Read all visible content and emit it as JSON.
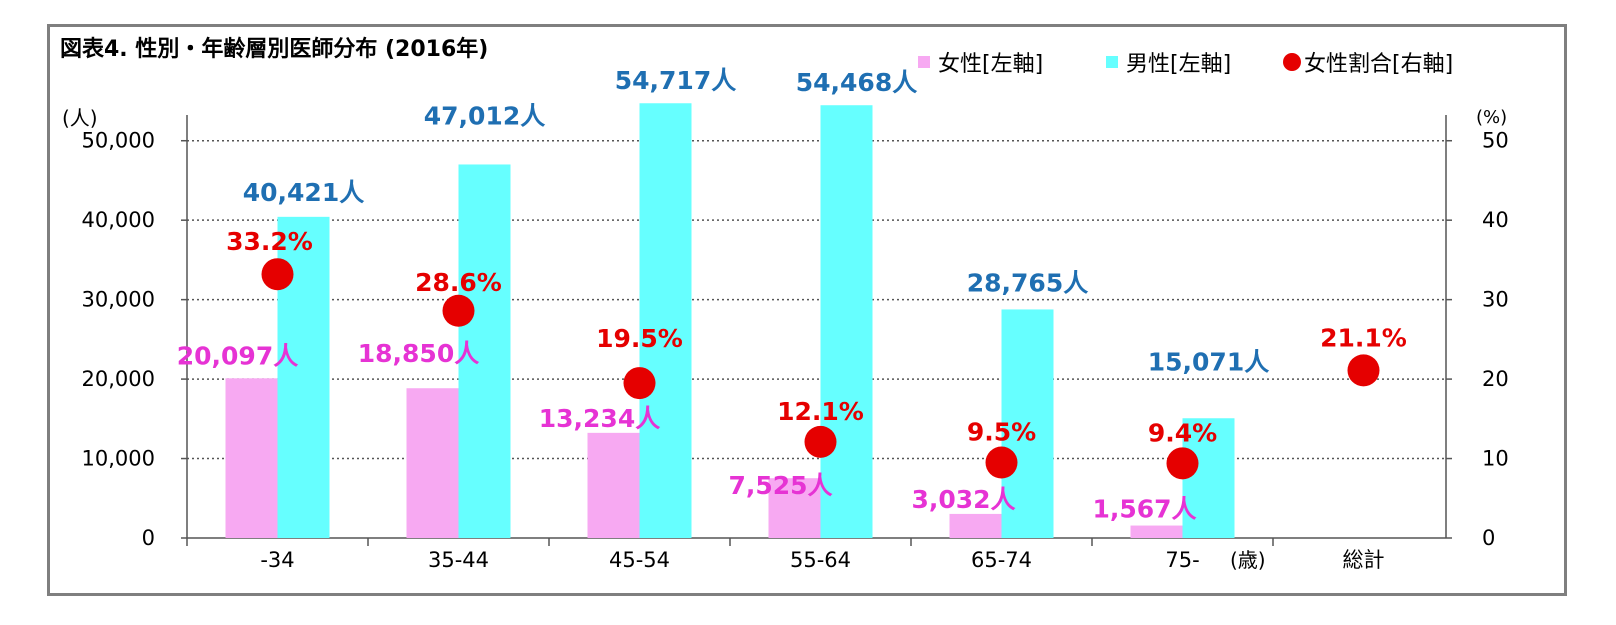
{
  "chart_data": {
    "type": "bar",
    "title": "図表4. 性別・年齢層別医師分布 (2016年)",
    "categories": [
      "-34",
      "35-44",
      "45-54",
      "55-64",
      "65-74",
      "75-",
      "総計"
    ],
    "x_unit": "(歳)",
    "y_left_unit": "(人)",
    "y_right_unit": "(%)",
    "y_left_lim": [
      0,
      55000
    ],
    "y_left_ticks": [
      "0",
      "10,000",
      "20,000",
      "30,000",
      "40,000",
      "50,000"
    ],
    "y_right_lim": [
      0,
      55
    ],
    "y_right_ticks": [
      "0",
      "10",
      "20",
      "30",
      "40",
      "50"
    ],
    "grid": "horizontal-dotted",
    "legend_position": "top-right",
    "series": [
      {
        "name": "女性[左軸]",
        "kind": "bar",
        "axis": "left",
        "color": "#f7a9f2",
        "label_color": "#e633d4",
        "values": [
          20097,
          18850,
          13234,
          7525,
          3032,
          1567,
          null
        ],
        "labels": [
          "20,097人",
          "18,850人",
          "13,234人",
          "7,525人",
          "3,032人",
          "1,567人",
          ""
        ]
      },
      {
        "name": "男性[左軸]",
        "kind": "bar",
        "axis": "left",
        "color": "#66ffff",
        "label_color": "#1f6fb2",
        "values": [
          40421,
          47012,
          54717,
          54468,
          28765,
          15071,
          null
        ],
        "labels": [
          "40,421人",
          "47,012人",
          "54,717人",
          "54,468人",
          "28,765人",
          "15,071人",
          ""
        ]
      },
      {
        "name": "女性割合[右軸]",
        "kind": "scatter",
        "axis": "right",
        "color": "#e50000",
        "label_color": "#e50000",
        "values": [
          33.2,
          28.6,
          19.5,
          12.1,
          9.5,
          9.4,
          21.1
        ],
        "labels": [
          "33.2%",
          "28.6%",
          "19.5%",
          "12.1%",
          "9.5%",
          "9.4%",
          "21.1%"
        ]
      }
    ]
  }
}
